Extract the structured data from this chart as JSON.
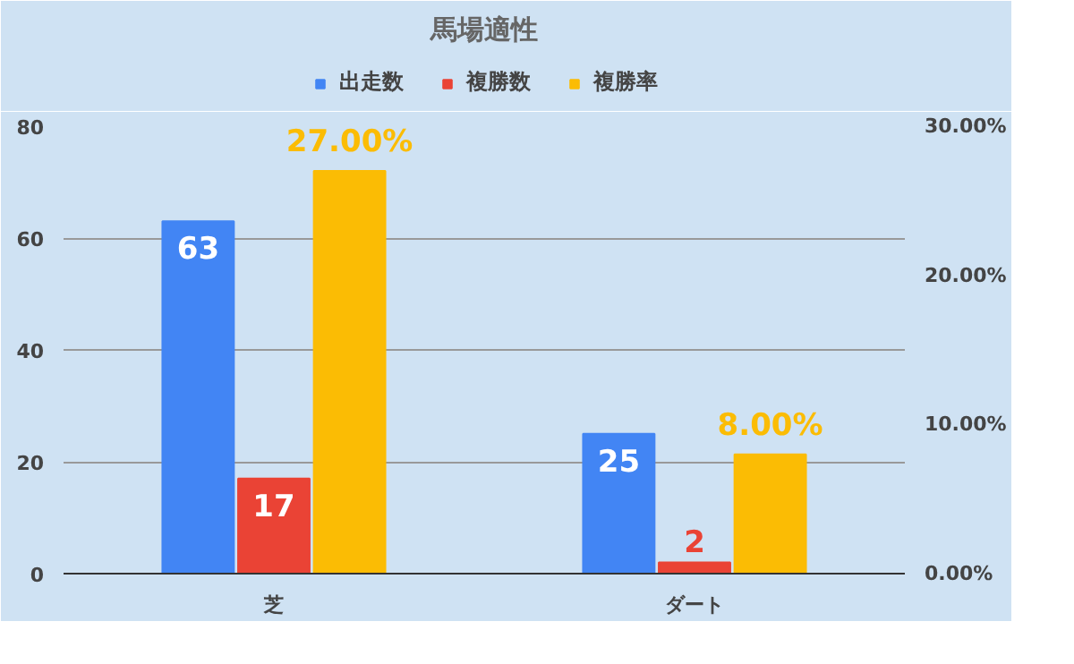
{
  "chart_data": {
    "type": "bar",
    "title": "馬場適性",
    "categories": [
      "芝",
      "ダート"
    ],
    "series": [
      {
        "name": "出走数",
        "color": "#4285f4",
        "values": [
          63,
          25
        ],
        "value_labels": [
          "63",
          "25"
        ]
      },
      {
        "name": "複勝数",
        "color": "#ea4335",
        "values": [
          17,
          2
        ],
        "value_labels": [
          "17",
          "2"
        ]
      },
      {
        "name": "複勝率",
        "color": "#fbbc04",
        "values": [
          27,
          8
        ],
        "axis": "y2",
        "value_labels": [
          "27.00%",
          "8.00%"
        ]
      }
    ],
    "ylim": [
      0,
      80
    ],
    "yticks": [
      0,
      20,
      40,
      60,
      80
    ],
    "y2lim": [
      0,
      30
    ],
    "y2ticks": [
      {
        "value": 0,
        "label": "0.00%"
      },
      {
        "value": 10,
        "label": "10.00%"
      },
      {
        "value": 20,
        "label": "20.00%"
      },
      {
        "value": 30,
        "label": "30.00%"
      }
    ],
    "grid": "y",
    "legend": "top"
  }
}
